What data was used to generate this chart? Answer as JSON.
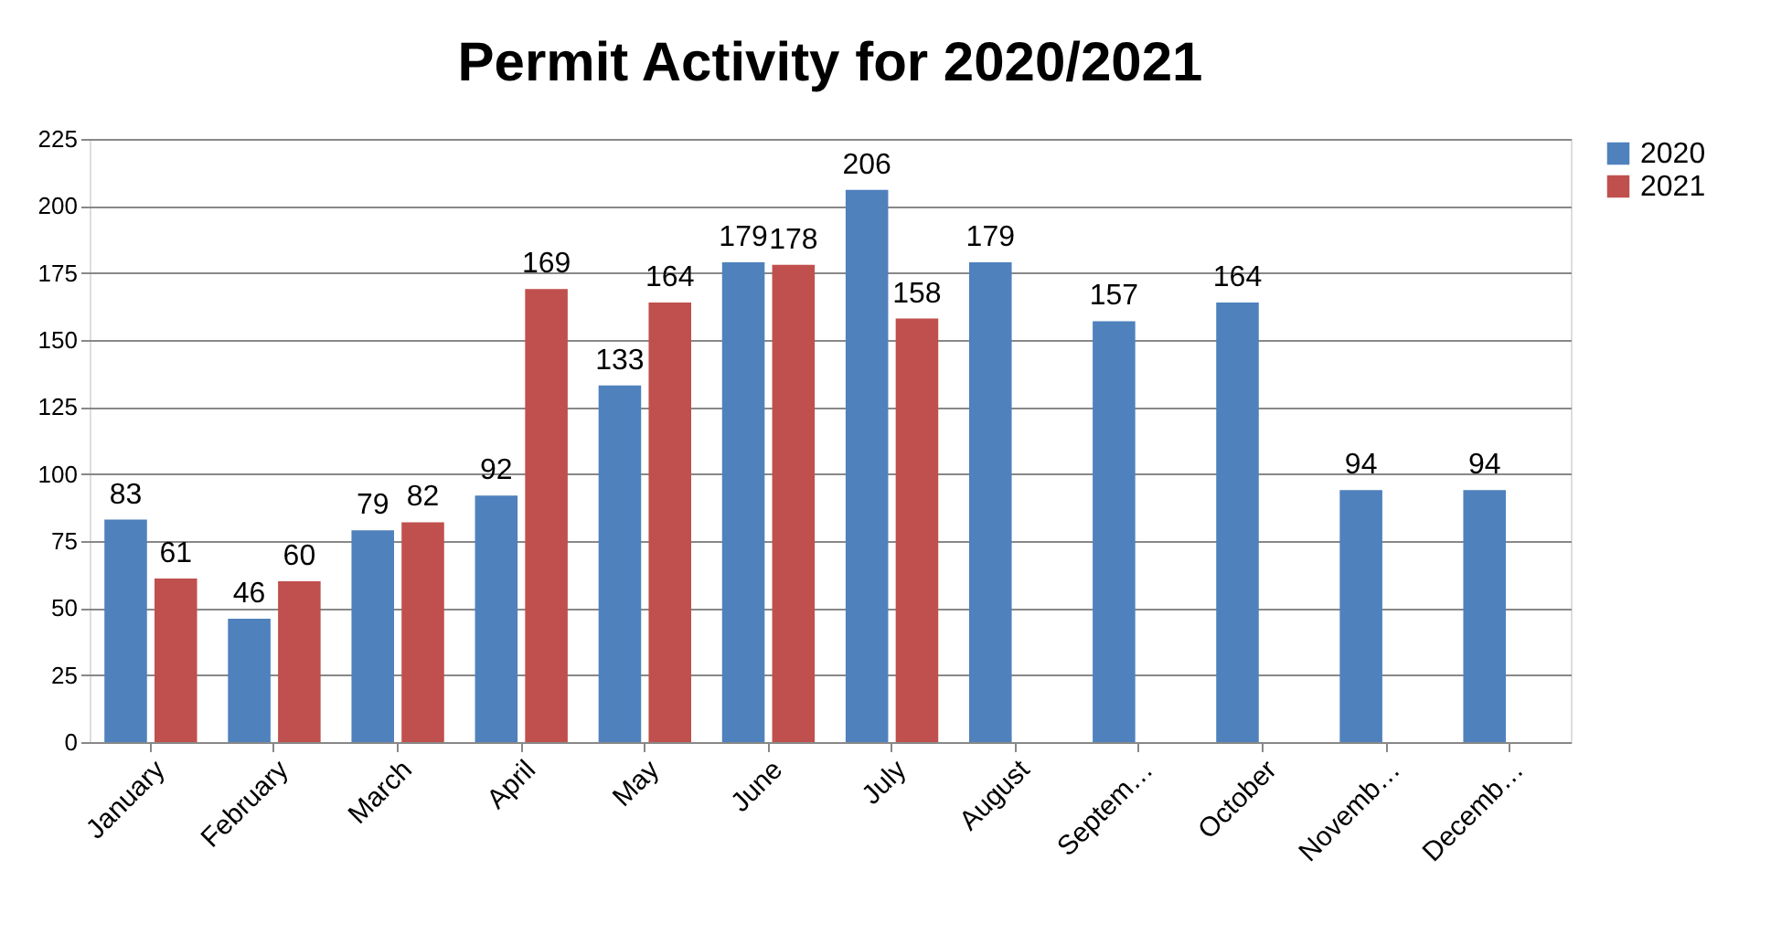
{
  "chart_data": {
    "type": "bar",
    "title": "Permit Activity for 2020/2021",
    "categories": [
      "January",
      "February",
      "March",
      "April",
      "May",
      "June",
      "July",
      "August",
      "Septem…",
      "October",
      "Novemb…",
      "Decemb…"
    ],
    "series": [
      {
        "name": "2020",
        "color": "#4f81bd",
        "values": [
          83,
          46,
          79,
          92,
          133,
          179,
          206,
          179,
          157,
          164,
          94,
          94
        ]
      },
      {
        "name": "2021",
        "color": "#c0504d",
        "values": [
          61,
          60,
          82,
          169,
          164,
          178,
          158,
          null,
          null,
          null,
          null,
          null
        ]
      }
    ],
    "ylim": [
      0,
      225
    ],
    "yticks": [
      0,
      25,
      50,
      75,
      100,
      125,
      150,
      175,
      200,
      225
    ],
    "grid": "y",
    "legend": "right",
    "data_labels": true
  }
}
